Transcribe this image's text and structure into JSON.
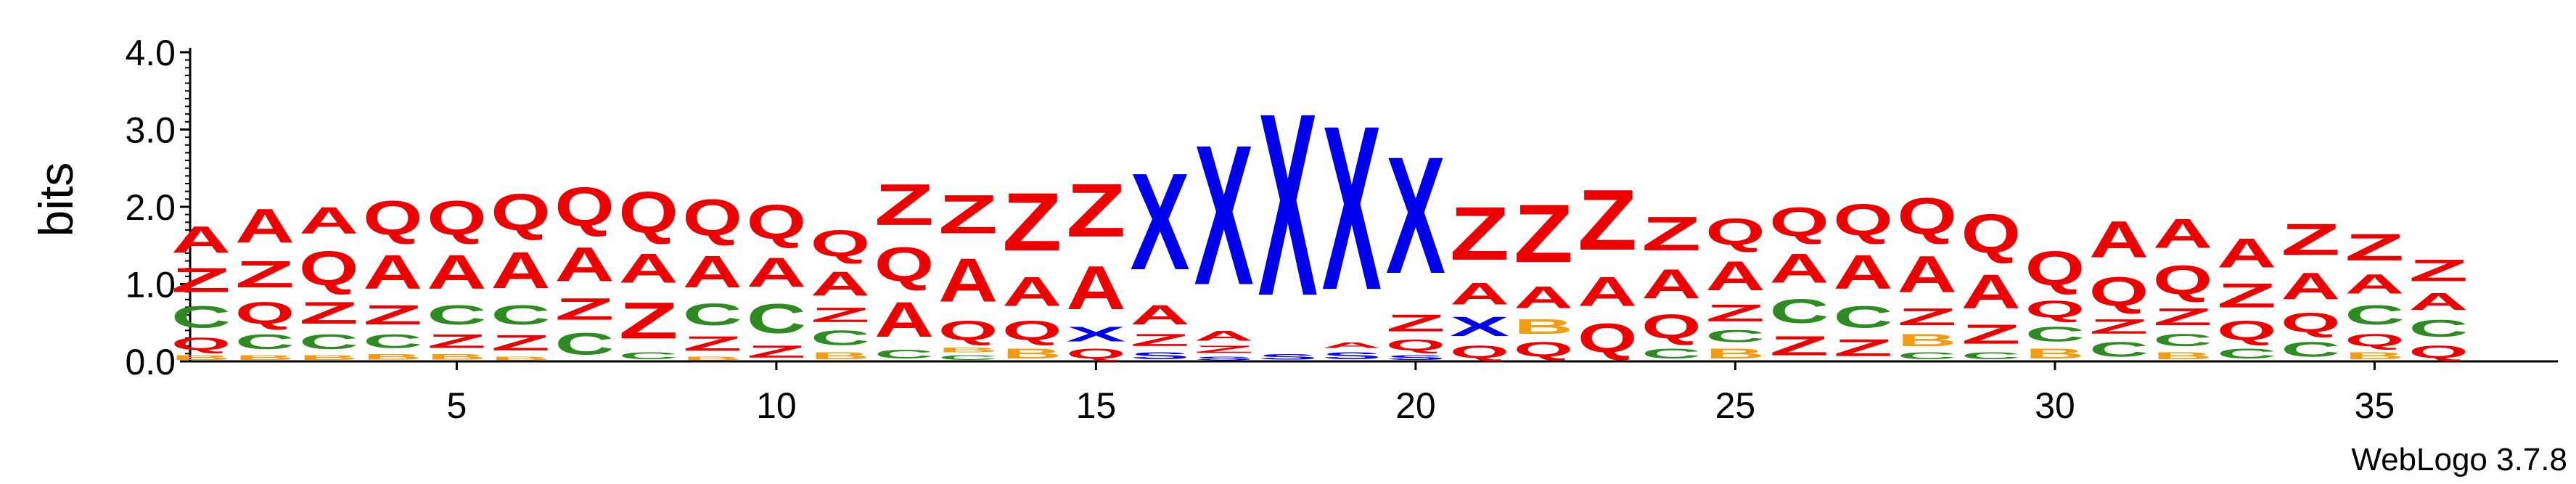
{
  "chart_data": {
    "type": "sequence-logo",
    "title": "",
    "ylabel": "bits",
    "xlabel": "",
    "ylim": [
      0,
      4.0
    ],
    "y_ticks": [
      {
        "value": 0.0,
        "label": "0.0"
      },
      {
        "value": 1.0,
        "label": "1.0"
      },
      {
        "value": 2.0,
        "label": "2.0"
      },
      {
        "value": 3.0,
        "label": "3.0"
      },
      {
        "value": 4.0,
        "label": "4.0"
      }
    ],
    "x_ticks": [
      {
        "value": 5,
        "label": "5"
      },
      {
        "value": 10,
        "label": "10"
      },
      {
        "value": 15,
        "label": "15"
      },
      {
        "value": 20,
        "label": "20"
      },
      {
        "value": 25,
        "label": "25"
      },
      {
        "value": 30,
        "label": "30"
      },
      {
        "value": 35,
        "label": "35"
      }
    ],
    "colors": {
      "A": "#ee0000",
      "Q": "#ee0000",
      "Z": "#ee0000",
      "C": "#2e8b22",
      "B": "#f39c12",
      "X": "#0000ee",
      "S": "#0000ee"
    },
    "positions": [
      {
        "pos": 1,
        "stack": [
          [
            "B",
            0.1
          ],
          [
            "Q",
            0.25
          ],
          [
            "C",
            0.45
          ],
          [
            "Z",
            0.5
          ],
          [
            "A",
            0.55
          ]
        ]
      },
      {
        "pos": 2,
        "stack": [
          [
            "B",
            0.1
          ],
          [
            "C",
            0.3
          ],
          [
            "Q",
            0.45
          ],
          [
            "Z",
            0.55
          ],
          [
            "A",
            0.7
          ]
        ]
      },
      {
        "pos": 3,
        "stack": [
          [
            "B",
            0.1
          ],
          [
            "C",
            0.3
          ],
          [
            "Z",
            0.45
          ],
          [
            "Q",
            0.7
          ],
          [
            "A",
            0.55
          ]
        ]
      },
      {
        "pos": 4,
        "stack": [
          [
            "B",
            0.12
          ],
          [
            "C",
            0.28
          ],
          [
            "Z",
            0.4
          ],
          [
            "A",
            0.7
          ],
          [
            "Q",
            0.7
          ]
        ]
      },
      {
        "pos": 5,
        "stack": [
          [
            "B",
            0.12
          ],
          [
            "Z",
            0.28
          ],
          [
            "C",
            0.4
          ],
          [
            "A",
            0.7
          ],
          [
            "Q",
            0.7
          ]
        ]
      },
      {
        "pos": 6,
        "stack": [
          [
            "B",
            0.08
          ],
          [
            "Z",
            0.32
          ],
          [
            "C",
            0.4
          ],
          [
            "A",
            0.75
          ],
          [
            "Q",
            0.75
          ]
        ]
      },
      {
        "pos": 7,
        "stack": [
          [
            "C",
            0.45
          ],
          [
            "Z",
            0.45
          ],
          [
            "A",
            0.7
          ],
          [
            "Q",
            0.8
          ]
        ]
      },
      {
        "pos": 8,
        "stack": [
          [
            "C",
            0.15
          ],
          [
            "Z",
            0.75
          ],
          [
            "A",
            0.6
          ],
          [
            "Q",
            0.85
          ]
        ]
      },
      {
        "pos": 9,
        "stack": [
          [
            "B",
            0.08
          ],
          [
            "Z",
            0.3
          ],
          [
            "C",
            0.45
          ],
          [
            "A",
            0.65
          ],
          [
            "Q",
            0.75
          ]
        ]
      },
      {
        "pos": 10,
        "stack": [
          [
            "Z",
            0.25
          ],
          [
            "C",
            0.6
          ],
          [
            "A",
            0.6
          ],
          [
            "Q",
            0.7
          ]
        ]
      },
      {
        "pos": 11,
        "stack": [
          [
            "B",
            0.15
          ],
          [
            "C",
            0.3
          ],
          [
            "Z",
            0.3
          ],
          [
            "A",
            0.5
          ],
          [
            "Q",
            0.55
          ]
        ]
      },
      {
        "pos": 12,
        "stack": [
          [
            "C",
            0.18
          ],
          [
            "A",
            0.72
          ],
          [
            "Q",
            0.7
          ],
          [
            "Z",
            0.85
          ]
        ]
      },
      {
        "pos": 13,
        "stack": [
          [
            "C",
            0.1
          ],
          [
            "B",
            0.1
          ],
          [
            "Q",
            0.4
          ],
          [
            "A",
            0.9
          ],
          [
            "Z",
            0.8
          ]
        ]
      },
      {
        "pos": 14,
        "stack": [
          [
            "B",
            0.2
          ],
          [
            "Q",
            0.4
          ],
          [
            "A",
            0.6
          ],
          [
            "Z",
            1.2
          ]
        ]
      },
      {
        "pos": 15,
        "stack": [
          [
            "Q",
            0.2
          ],
          [
            "X",
            0.3
          ],
          [
            "A",
            0.9
          ],
          [
            "Z",
            1.1
          ]
        ]
      },
      {
        "pos": 16,
        "stack": [
          [
            "S",
            0.15
          ],
          [
            "Z",
            0.25
          ],
          [
            "A",
            0.4
          ],
          [
            "X",
            2.0
          ]
        ]
      },
      {
        "pos": 17,
        "stack": [
          [
            "S",
            0.08
          ],
          [
            "Z",
            0.15
          ],
          [
            "A",
            0.2
          ],
          [
            "X",
            2.9
          ]
        ]
      },
      {
        "pos": 18,
        "stack": [
          [
            "S",
            0.12
          ],
          [
            "X",
            3.78
          ]
        ]
      },
      {
        "pos": 19,
        "stack": [
          [
            "S",
            0.15
          ],
          [
            "A",
            0.12
          ],
          [
            "X",
            3.4
          ]
        ]
      },
      {
        "pos": 20,
        "stack": [
          [
            "S",
            0.1
          ],
          [
            "Q",
            0.22
          ],
          [
            "Z",
            0.35
          ],
          [
            "X",
            2.42
          ]
        ]
      },
      {
        "pos": 21,
        "stack": [
          [
            "Q",
            0.25
          ],
          [
            "X",
            0.4
          ],
          [
            "A",
            0.45
          ],
          [
            "Z",
            1.1
          ]
        ]
      },
      {
        "pos": 22,
        "stack": [
          [
            "Q",
            0.3
          ],
          [
            "B",
            0.3
          ],
          [
            "A",
            0.45
          ],
          [
            "Z",
            1.2
          ]
        ]
      },
      {
        "pos": 23,
        "stack": [
          [
            "Q",
            0.6
          ],
          [
            "A",
            0.6
          ],
          [
            "Z",
            1.25
          ]
        ]
      },
      {
        "pos": 24,
        "stack": [
          [
            "C",
            0.2
          ],
          [
            "Q",
            0.5
          ],
          [
            "A",
            0.6
          ],
          [
            "Z",
            0.7
          ]
        ]
      },
      {
        "pos": 25,
        "stack": [
          [
            "B",
            0.2
          ],
          [
            "C",
            0.25
          ],
          [
            "Z",
            0.35
          ],
          [
            "A",
            0.6
          ],
          [
            "Q",
            0.55
          ]
        ]
      },
      {
        "pos": 26,
        "stack": [
          [
            "Z",
            0.4
          ],
          [
            "C",
            0.5
          ],
          [
            "A",
            0.6
          ],
          [
            "Q",
            0.6
          ]
        ]
      },
      {
        "pos": 27,
        "stack": [
          [
            "Z",
            0.35
          ],
          [
            "C",
            0.45
          ],
          [
            "A",
            0.7
          ],
          [
            "Q",
            0.65
          ]
        ]
      },
      {
        "pos": 28,
        "stack": [
          [
            "C",
            0.15
          ],
          [
            "B",
            0.25
          ],
          [
            "Z",
            0.35
          ],
          [
            "A",
            0.75
          ],
          [
            "Q",
            0.75
          ]
        ]
      },
      {
        "pos": 29,
        "stack": [
          [
            "C",
            0.15
          ],
          [
            "Z",
            0.4
          ],
          [
            "A",
            0.7
          ],
          [
            "Q",
            0.8
          ]
        ]
      },
      {
        "pos": 30,
        "stack": [
          [
            "B",
            0.2
          ],
          [
            "C",
            0.3
          ],
          [
            "Q",
            0.35
          ],
          [
            "Q",
            0.7
          ]
        ]
      },
      {
        "pos": 31,
        "stack": [
          [
            "C",
            0.3
          ],
          [
            "Z",
            0.3
          ],
          [
            "Q",
            0.6
          ],
          [
            "A",
            0.75
          ]
        ]
      },
      {
        "pos": 32,
        "stack": [
          [
            "B",
            0.15
          ],
          [
            "C",
            0.25
          ],
          [
            "Z",
            0.35
          ],
          [
            "Q",
            0.6
          ],
          [
            "A",
            0.6
          ]
        ]
      },
      {
        "pos": 33,
        "stack": [
          [
            "C",
            0.2
          ],
          [
            "Q",
            0.4
          ],
          [
            "Z",
            0.5
          ],
          [
            "A",
            0.6
          ]
        ]
      },
      {
        "pos": 34,
        "stack": [
          [
            "C",
            0.3
          ],
          [
            "Q",
            0.4
          ],
          [
            "A",
            0.55
          ],
          [
            "Z",
            0.65
          ]
        ]
      },
      {
        "pos": 35,
        "stack": [
          [
            "B",
            0.15
          ],
          [
            "Q",
            0.25
          ],
          [
            "C",
            0.4
          ],
          [
            "A",
            0.4
          ],
          [
            "Z",
            0.55
          ]
        ]
      },
      {
        "pos": 36,
        "stack": [
          [
            "Q",
            0.25
          ],
          [
            "C",
            0.35
          ],
          [
            "A",
            0.35
          ],
          [
            "Z",
            0.45
          ]
        ]
      }
    ],
    "footer": "WebLogo 3.7.8"
  }
}
